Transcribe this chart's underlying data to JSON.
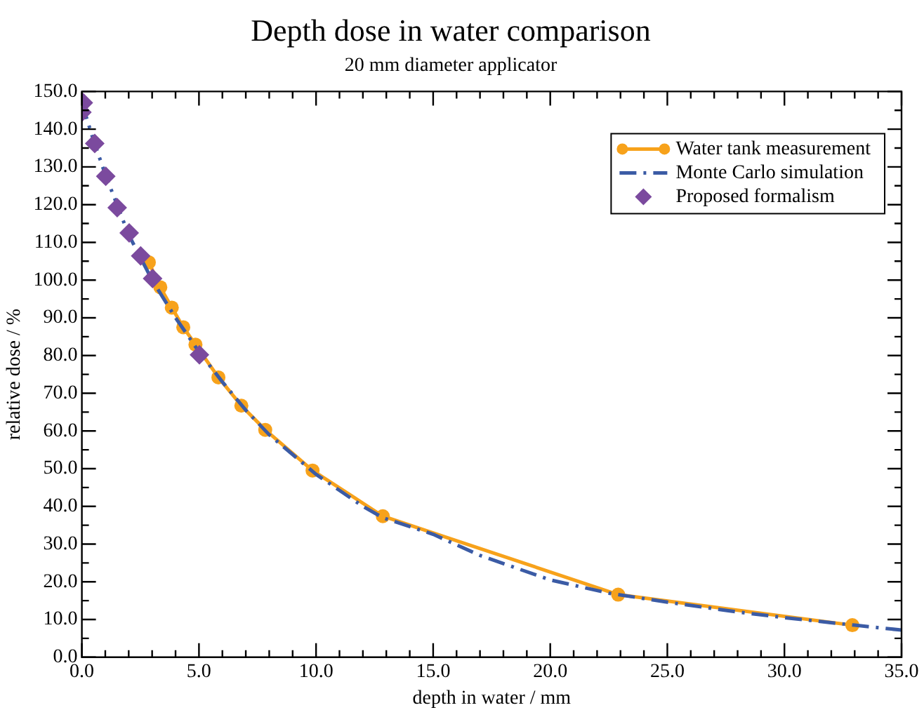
{
  "chart_data": {
    "type": "line",
    "title": "Depth dose in water comparison",
    "subtitle": "20 mm diameter applicator",
    "xlabel": "depth in water / mm",
    "ylabel": "relative dose / %",
    "xlim": [
      0,
      35
    ],
    "xticks": [
      {
        "value": 0,
        "label": "0.0"
      },
      {
        "value": 5,
        "label": "5.0"
      },
      {
        "value": 10,
        "label": "10.0"
      },
      {
        "value": 15,
        "label": "15.0"
      },
      {
        "value": 20,
        "label": "20.0"
      },
      {
        "value": 25,
        "label": "25.0"
      },
      {
        "value": 30,
        "label": "30.0"
      },
      {
        "value": 35,
        "label": "35.0"
      }
    ],
    "ylim": [
      0,
      150
    ],
    "yticks": [
      {
        "value": 0,
        "label": "0.0"
      },
      {
        "value": 10,
        "label": "10.0"
      },
      {
        "value": 20,
        "label": "20.0"
      },
      {
        "value": 30,
        "label": "30.0"
      },
      {
        "value": 40,
        "label": "40.0"
      },
      {
        "value": 50,
        "label": "50.0"
      },
      {
        "value": 60,
        "label": "60.0"
      },
      {
        "value": 70,
        "label": "70.0"
      },
      {
        "value": 80,
        "label": "80.0"
      },
      {
        "value": 90,
        "label": "90.0"
      },
      {
        "value": 100,
        "label": "100.0"
      },
      {
        "value": 110,
        "label": "110.0"
      },
      {
        "value": 120,
        "label": "120.0"
      },
      {
        "value": 130,
        "label": "130.0"
      },
      {
        "value": 140,
        "label": "140.0"
      },
      {
        "value": 150,
        "label": "150.0"
      }
    ],
    "grid": false,
    "legend": "top right",
    "series": [
      {
        "name": "Water tank measurement",
        "type": "line",
        "color": "#f7a21b",
        "marker": "circle",
        "line_style": "solid",
        "x": [
          2.86,
          3.35,
          3.84,
          4.33,
          4.85,
          5.83,
          6.81,
          7.83,
          9.85,
          12.85,
          22.9,
          32.9
        ],
        "values": [
          104.7,
          98.1,
          92.7,
          87.5,
          82.9,
          74.2,
          66.7,
          60.3,
          49.5,
          37.4,
          16.6,
          8.5
        ]
      },
      {
        "name": "Monte Carlo simulation",
        "type": "line",
        "color": "#3b5ba5",
        "marker": "none",
        "line_style": "dashdot",
        "x": [
          0,
          0.5,
          1,
          2,
          3,
          4,
          5,
          6,
          7,
          8,
          10,
          12,
          12.85,
          15,
          17,
          20,
          22.5,
          25,
          28,
          30,
          33,
          35
        ],
        "values": [
          147,
          137,
          128,
          112,
          100,
          90,
          81,
          73,
          65.5,
          59,
          48.5,
          40,
          37,
          32.6,
          27,
          20.5,
          17,
          14.6,
          12,
          10.5,
          8.5,
          7.2
        ]
      },
      {
        "name": "Proposed formalism",
        "type": "scatter",
        "color": "#7b4a9e",
        "marker": "diamond",
        "x": [
          0.06,
          0,
          0.55,
          1.02,
          1.51,
          2.02,
          2.51,
          3.02,
          5.02
        ],
        "values": [
          147,
          144.5,
          136.2,
          127.5,
          119.2,
          112.5,
          106.4,
          100.4,
          80.2
        ]
      }
    ]
  }
}
